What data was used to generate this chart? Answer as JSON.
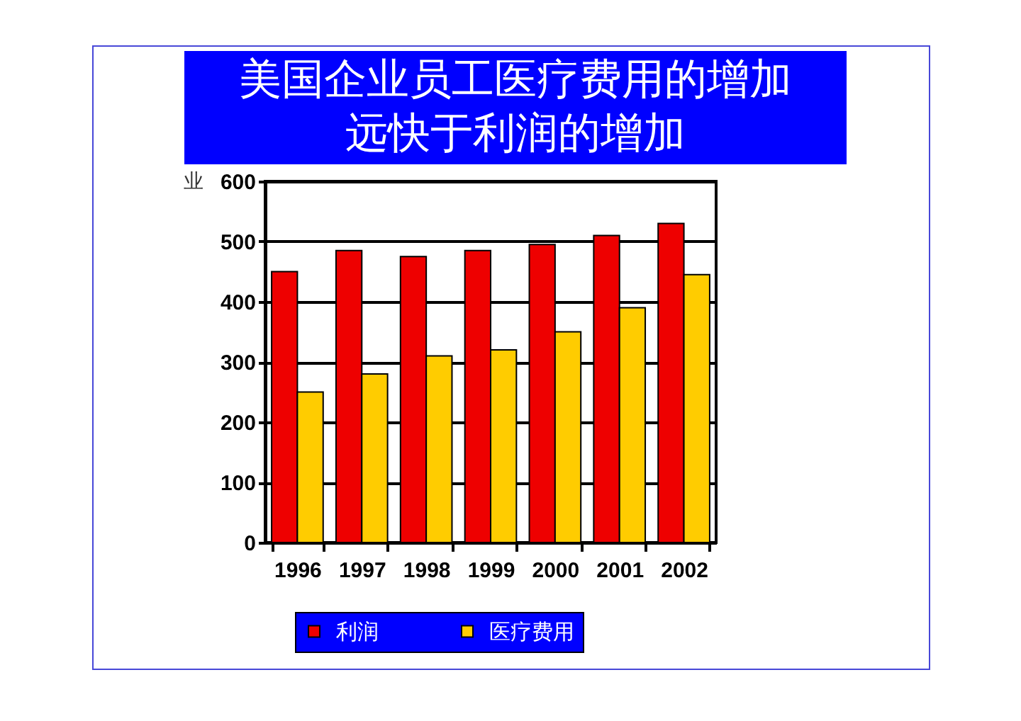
{
  "chart_data": {
    "type": "bar",
    "title": "美国企业员工医疗费用的增加远快于利润的增加",
    "ylabel": "业",
    "categories": [
      "1996",
      "1997",
      "1998",
      "1999",
      "2000",
      "2001",
      "2002"
    ],
    "series": [
      {
        "name": "利润",
        "color": "#ee0000",
        "values": [
          450,
          485,
          475,
          485,
          495,
          510,
          530
        ]
      },
      {
        "name": "医疗费用",
        "color": "#ffcc00",
        "values": [
          250,
          280,
          310,
          320,
          350,
          390,
          445
        ]
      }
    ],
    "ylim": [
      0,
      600
    ],
    "yticks": [
      0,
      100,
      200,
      300,
      400,
      500,
      600
    ],
    "grid": "y",
    "legend": "bottom"
  }
}
